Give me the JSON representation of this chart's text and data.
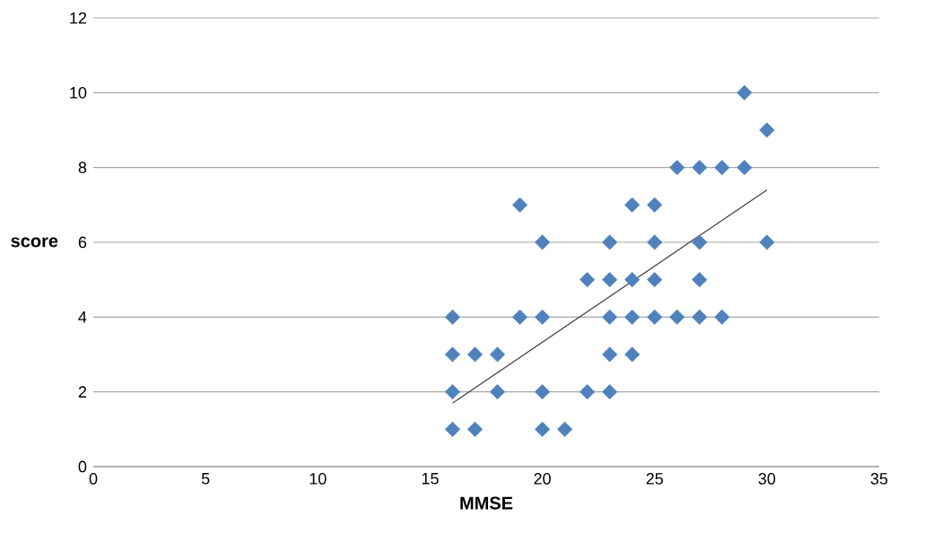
{
  "chart_data": {
    "type": "scatter",
    "xlabel": "MMSE",
    "ylabel": "score",
    "xlim": [
      0,
      35
    ],
    "xticks": [
      0,
      5,
      10,
      15,
      20,
      25,
      30,
      35
    ],
    "ylim": [
      0,
      12
    ],
    "yticks": [
      0,
      2,
      4,
      6,
      8,
      10,
      12
    ],
    "grid": "y",
    "marker": "diamond",
    "series": [
      {
        "color": "#4f81bd",
        "x": [
          16,
          17,
          20,
          21,
          16,
          18,
          20,
          22,
          23,
          16,
          17,
          18,
          23,
          24,
          16,
          19,
          20,
          23,
          24,
          25,
          26,
          27,
          28,
          22,
          23,
          24,
          25,
          27,
          20,
          23,
          25,
          27,
          30,
          19,
          24,
          25,
          26,
          27,
          28,
          29,
          30,
          29
        ],
        "values": [
          1,
          1,
          1,
          1,
          2,
          2,
          2,
          2,
          2,
          3,
          3,
          3,
          3,
          3,
          4,
          4,
          4,
          4,
          4,
          4,
          4,
          4,
          4,
          5,
          5,
          5,
          5,
          5,
          6,
          6,
          6,
          6,
          6,
          7,
          7,
          7,
          8,
          8,
          8,
          8,
          9,
          10
        ]
      },
      {
        "type": "line",
        "color": "#404040",
        "marker": "none",
        "x": [
          16,
          30
        ],
        "values": [
          1.7,
          7.4
        ]
      }
    ]
  }
}
